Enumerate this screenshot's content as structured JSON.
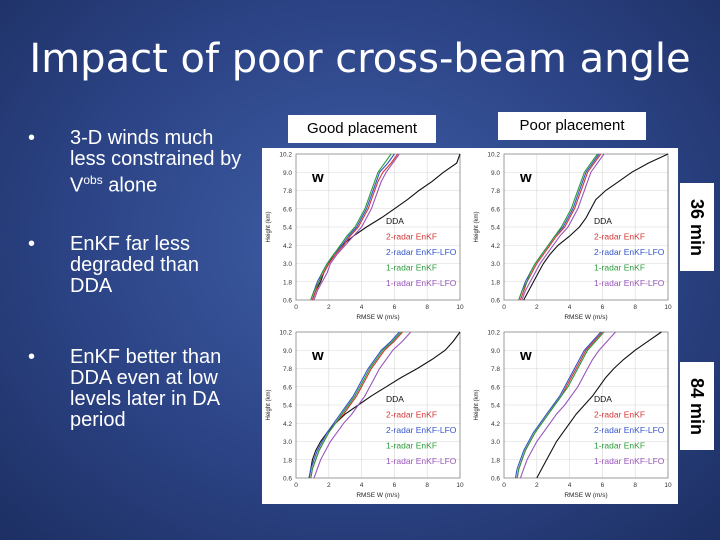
{
  "title": "Impact of poor cross-beam angle",
  "bullets": [
    {
      "text": "3-D winds much less constrained by V",
      "sup": "obs",
      "suffix": " alone"
    },
    {
      "text": "EnKF far less degraded than DDA"
    },
    {
      "text": "EnKF better than DDA even at low levels later in DA period"
    }
  ],
  "headers": {
    "good": "Good placement",
    "poor": "Poor placement"
  },
  "side_labels": {
    "top": "36 min",
    "bottom": "84 min"
  },
  "chart_data": [
    {
      "type": "line",
      "panel": "good-36min",
      "variable_label": "w",
      "xlabel": "RMSE W (m/s)",
      "ylabel": "Height (km)",
      "xlim": [
        0,
        10
      ],
      "ylim": [
        0.6,
        10.2
      ],
      "xticks": [
        "0",
        "2",
        "4",
        "6",
        "8",
        "10"
      ],
      "yticks": [
        "0.6",
        "1.8",
        "3.0",
        "4.2",
        "5.4",
        "6.6",
        "7.8",
        "9.0",
        "10.2"
      ],
      "legend": [
        "DDA",
        "2-radar EnKF",
        "2-radar EnKF-LFO",
        "1-radar EnKF",
        "1-radar EnKF-LFO"
      ],
      "heights": [
        0.6,
        1.2,
        1.8,
        2.4,
        3.0,
        3.6,
        4.2,
        4.8,
        5.4,
        6.0,
        6.6,
        7.2,
        7.8,
        8.4,
        9.0,
        9.6,
        10.2
      ],
      "series": [
        {
          "name": "DDA",
          "color": "#111111",
          "values": [
            1.0,
            1.2,
            1.5,
            1.7,
            2.0,
            2.3,
            2.8,
            3.5,
            4.3,
            5.2,
            6.0,
            6.8,
            7.5,
            8.3,
            9.0,
            9.8,
            10.0
          ]
        },
        {
          "name": "2-radar EnKF",
          "color": "#d63333",
          "values": [
            1.0,
            1.2,
            1.4,
            1.7,
            2.0,
            2.4,
            2.9,
            3.3,
            3.8,
            4.1,
            4.4,
            4.6,
            4.8,
            5.0,
            5.3,
            5.8,
            6.2
          ]
        },
        {
          "name": "2-radar EnKF-LFO",
          "color": "#3355cc",
          "values": [
            0.9,
            1.1,
            1.3,
            1.6,
            1.9,
            2.3,
            2.8,
            3.2,
            3.7,
            4.0,
            4.3,
            4.5,
            4.7,
            4.9,
            5.1,
            5.6,
            6.0
          ]
        },
        {
          "name": "1-radar EnKF",
          "color": "#2a9a3a",
          "values": [
            0.9,
            1.1,
            1.4,
            1.6,
            1.9,
            2.3,
            2.7,
            3.1,
            3.6,
            3.9,
            4.2,
            4.4,
            4.6,
            4.8,
            5.0,
            5.4,
            5.8
          ]
        },
        {
          "name": "1-radar EnKF-LFO",
          "color": "#9955bb",
          "values": [
            1.1,
            1.3,
            1.6,
            1.9,
            2.1,
            2.5,
            3.0,
            3.5,
            4.0,
            4.3,
            4.6,
            4.8,
            5.0,
            5.2,
            5.5,
            5.9,
            6.3
          ]
        }
      ]
    },
    {
      "type": "line",
      "panel": "poor-36min",
      "variable_label": "w",
      "xlabel": "RMSE W (m/s)",
      "ylabel": "Height (km)",
      "xlim": [
        0,
        10
      ],
      "ylim": [
        0.6,
        10.2
      ],
      "xticks": [
        "0",
        "2",
        "4",
        "6",
        "8",
        "10"
      ],
      "yticks": [
        "0.6",
        "1.8",
        "3.0",
        "4.2",
        "5.4",
        "6.6",
        "7.8",
        "9.0",
        "10.2"
      ],
      "legend": [
        "DDA",
        "2-radar EnKF",
        "2-radar EnKF-LFO",
        "1-radar EnKF",
        "1-radar EnKF-LFO"
      ],
      "heights": [
        0.6,
        1.2,
        1.8,
        2.4,
        3.0,
        3.6,
        4.2,
        4.8,
        5.4,
        6.0,
        6.6,
        7.2,
        7.8,
        8.4,
        9.0,
        9.6,
        10.2
      ],
      "series": [
        {
          "name": "DDA",
          "color": "#111111",
          "values": [
            1.2,
            1.5,
            1.8,
            2.1,
            2.4,
            2.8,
            3.3,
            4.0,
            4.6,
            5.0,
            5.3,
            5.6,
            6.2,
            7.0,
            7.8,
            8.8,
            10.0
          ]
        },
        {
          "name": "2-radar EnKF",
          "color": "#d63333",
          "values": [
            1.0,
            1.2,
            1.4,
            1.7,
            2.0,
            2.4,
            2.8,
            3.2,
            3.7,
            4.0,
            4.3,
            4.5,
            4.7,
            4.9,
            5.1,
            5.5,
            5.9
          ]
        },
        {
          "name": "2-radar EnKF-LFO",
          "color": "#3355cc",
          "values": [
            0.9,
            1.1,
            1.3,
            1.6,
            1.9,
            2.3,
            2.7,
            3.1,
            3.6,
            3.9,
            4.2,
            4.4,
            4.6,
            4.8,
            5.0,
            5.4,
            5.8
          ]
        },
        {
          "name": "1-radar EnKF",
          "color": "#2a9a3a",
          "values": [
            0.9,
            1.1,
            1.4,
            1.6,
            1.9,
            2.3,
            2.7,
            3.1,
            3.5,
            3.8,
            4.1,
            4.3,
            4.5,
            4.7,
            4.9,
            5.3,
            5.7
          ]
        },
        {
          "name": "1-radar EnKF-LFO",
          "color": "#9955bb",
          "values": [
            1.1,
            1.3,
            1.6,
            1.9,
            2.2,
            2.6,
            3.0,
            3.4,
            3.9,
            4.2,
            4.5,
            4.7,
            4.9,
            5.1,
            5.3,
            5.7,
            6.1
          ]
        }
      ]
    },
    {
      "type": "line",
      "panel": "good-84min",
      "variable_label": "w",
      "xlabel": "RMSE W (m/s)",
      "ylabel": "Height (km)",
      "xlim": [
        0,
        10
      ],
      "ylim": [
        0.6,
        10.2
      ],
      "xticks": [
        "0",
        "2",
        "4",
        "6",
        "8",
        "10"
      ],
      "yticks": [
        "0.6",
        "1.8",
        "3.0",
        "4.2",
        "5.4",
        "6.6",
        "7.8",
        "9.0",
        "10.2"
      ],
      "legend": [
        "DDA",
        "2-radar EnKF",
        "2-radar EnKF-LFO",
        "1-radar EnKF",
        "1-radar EnKF-LFO"
      ],
      "heights": [
        0.6,
        1.2,
        1.8,
        2.4,
        3.0,
        3.6,
        4.2,
        4.8,
        5.4,
        6.0,
        6.6,
        7.2,
        7.8,
        8.4,
        9.0,
        9.6,
        10.2
      ],
      "series": [
        {
          "name": "DDA",
          "color": "#111111",
          "values": [
            0.8,
            0.9,
            1.0,
            1.2,
            1.5,
            1.9,
            2.4,
            3.0,
            3.8,
            4.6,
            5.5,
            6.4,
            7.4,
            8.3,
            9.1,
            9.6,
            10.0
          ]
        },
        {
          "name": "2-radar EnKF",
          "color": "#d63333",
          "values": [
            0.9,
            1.0,
            1.2,
            1.4,
            1.7,
            2.0,
            2.4,
            2.9,
            3.3,
            3.7,
            4.0,
            4.3,
            4.6,
            5.0,
            5.4,
            6.0,
            6.5
          ]
        },
        {
          "name": "2-radar EnKF-LFO",
          "color": "#3355cc",
          "values": [
            0.8,
            0.9,
            1.1,
            1.3,
            1.6,
            1.9,
            2.3,
            2.7,
            3.1,
            3.5,
            3.8,
            4.1,
            4.4,
            4.8,
            5.2,
            5.8,
            6.3
          ]
        },
        {
          "name": "1-radar EnKF",
          "color": "#2a9a3a",
          "values": [
            0.9,
            1.0,
            1.2,
            1.4,
            1.7,
            2.0,
            2.4,
            2.8,
            3.2,
            3.6,
            3.9,
            4.2,
            4.5,
            4.9,
            5.3,
            5.9,
            6.4
          ]
        },
        {
          "name": "1-radar EnKF-LFO",
          "color": "#9955bb",
          "values": [
            1.1,
            1.3,
            1.5,
            1.8,
            2.1,
            2.5,
            2.9,
            3.4,
            3.8,
            4.2,
            4.5,
            4.8,
            5.1,
            5.5,
            5.9,
            6.5,
            7.0
          ]
        }
      ]
    },
    {
      "type": "line",
      "panel": "poor-84min",
      "variable_label": "w",
      "xlabel": "RMSE W (m/s)",
      "ylabel": "Height (km)",
      "xlim": [
        0,
        10
      ],
      "ylim": [
        0.6,
        10.2
      ],
      "xticks": [
        "0",
        "2",
        "4",
        "6",
        "8",
        "10"
      ],
      "yticks": [
        "0.6",
        "1.8",
        "3.0",
        "4.2",
        "5.4",
        "6.6",
        "7.8",
        "9.0",
        "10.2"
      ],
      "legend": [
        "DDA",
        "2-radar EnKF",
        "2-radar EnKF-LFO",
        "1-radar EnKF",
        "1-radar EnKF-LFO"
      ],
      "heights": [
        0.6,
        1.2,
        1.8,
        2.4,
        3.0,
        3.6,
        4.2,
        4.8,
        5.4,
        6.0,
        6.6,
        7.2,
        7.8,
        8.4,
        9.0,
        9.6,
        10.2
      ],
      "series": [
        {
          "name": "DDA",
          "color": "#111111",
          "values": [
            2.0,
            2.3,
            2.6,
            2.9,
            3.2,
            3.6,
            4.0,
            4.4,
            4.9,
            5.4,
            5.8,
            6.2,
            6.7,
            7.3,
            8.0,
            8.8,
            9.6
          ]
        },
        {
          "name": "2-radar EnKF",
          "color": "#d63333",
          "values": [
            0.8,
            0.9,
            1.1,
            1.3,
            1.6,
            1.9,
            2.3,
            2.7,
            3.1,
            3.5,
            3.8,
            4.1,
            4.4,
            4.7,
            5.0,
            5.5,
            6.0
          ]
        },
        {
          "name": "2-radar EnKF-LFO",
          "color": "#3355cc",
          "values": [
            0.7,
            0.8,
            1.0,
            1.2,
            1.5,
            1.8,
            2.2,
            2.6,
            3.0,
            3.4,
            3.7,
            4.0,
            4.3,
            4.6,
            4.9,
            5.4,
            5.9
          ]
        },
        {
          "name": "1-radar EnKF",
          "color": "#2a9a3a",
          "values": [
            0.8,
            0.9,
            1.1,
            1.3,
            1.6,
            1.9,
            2.3,
            2.7,
            3.1,
            3.5,
            3.9,
            4.2,
            4.5,
            4.8,
            5.1,
            5.6,
            6.1
          ]
        },
        {
          "name": "1-radar EnKF-LFO",
          "color": "#9955bb",
          "values": [
            1.0,
            1.2,
            1.4,
            1.7,
            2.0,
            2.4,
            2.8,
            3.2,
            3.7,
            4.1,
            4.5,
            4.8,
            5.1,
            5.4,
            5.8,
            6.3,
            6.8
          ]
        }
      ]
    }
  ]
}
